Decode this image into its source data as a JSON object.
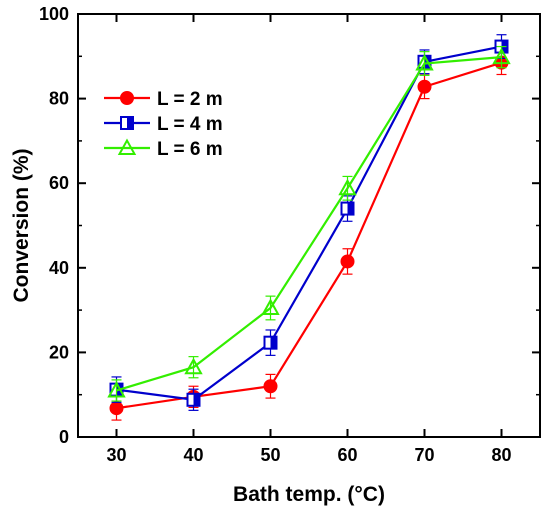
{
  "chart_data": {
    "type": "line",
    "xlabel": "Bath temp. (°C)",
    "ylabel": "Conversion (%)",
    "x": [
      30,
      40,
      50,
      60,
      70,
      80
    ],
    "xlim": [
      25,
      85
    ],
    "ylim": [
      0,
      100
    ],
    "xticks": [
      30,
      40,
      50,
      60,
      70,
      80
    ],
    "yticks": [
      0,
      20,
      40,
      60,
      80,
      100
    ],
    "grid": false,
    "legend_position": "top-left",
    "series": [
      {
        "name": "L = 2 m",
        "marker": "circle-filled",
        "color": "#ff0000",
        "values": [
          6.8,
          9.5,
          12.0,
          41.5,
          82.8,
          88.5
        ],
        "errors": [
          2.8,
          2.5,
          2.8,
          3.0,
          2.8,
          2.8
        ]
      },
      {
        "name": "L = 4 m",
        "marker": "square-half-filled",
        "color": "#0000cc",
        "values": [
          11.2,
          8.8,
          22.3,
          54.0,
          88.7,
          92.3
        ],
        "errors": [
          3.0,
          2.5,
          3.0,
          3.0,
          2.8,
          2.8
        ]
      },
      {
        "name": "L = 6 m",
        "marker": "triangle-open",
        "color": "#33ee00",
        "values": [
          11.0,
          16.5,
          30.5,
          58.8,
          88.3,
          89.8
        ],
        "errors": [
          2.5,
          2.5,
          2.8,
          2.8,
          2.8,
          2.5
        ]
      }
    ]
  }
}
